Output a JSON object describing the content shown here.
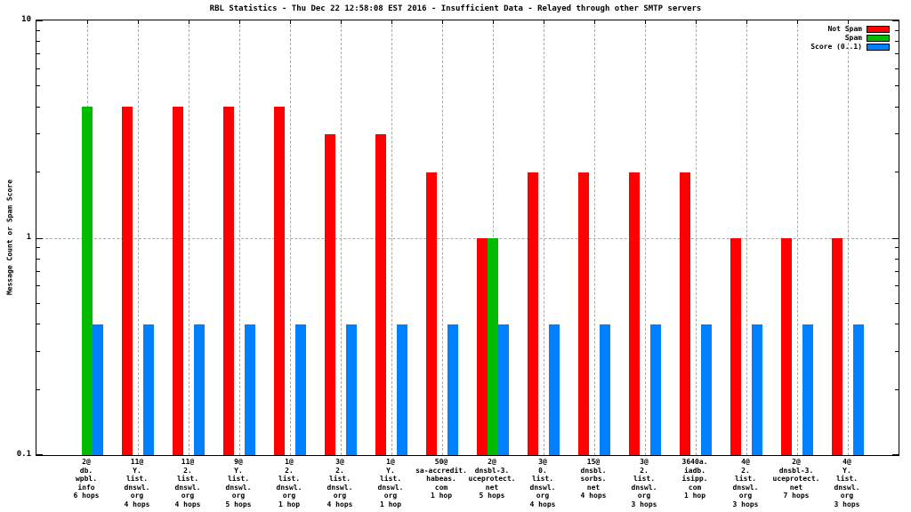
{
  "title": "RBL Statistics - Thu Dec 22 12:58:08 EST 2016 - Insufficient Data - Relayed through other SMTP servers",
  "chart_data": {
    "type": "bar",
    "title": "RBL Statistics - Thu Dec 22 12:58:08 EST 2016 - Insufficient Data - Relayed through other SMTP servers",
    "ylabel": "Message Count or Spam Score",
    "xlabel": "",
    "yscale": "log",
    "ylim": [
      0.1,
      10
    ],
    "ytick_labels": {
      "top": "10",
      "mid": "1",
      "bottom": "0.1"
    },
    "grid": true,
    "legend_position": "top-right-inside",
    "legend": [
      {
        "label": "Not Spam",
        "color": "#ff0000"
      },
      {
        "label": "Spam",
        "color": "#00bb00"
      },
      {
        "label": "Score (0..1)",
        "color": "#0080ff"
      }
    ],
    "categories": [
      [
        "2@",
        "db.",
        "wpbl.",
        "info",
        "6 hops"
      ],
      [
        "11@",
        "Y.",
        "list.",
        "dnswl.",
        "org",
        "4 hops"
      ],
      [
        "11@",
        "2.",
        "list.",
        "dnswl.",
        "org",
        "4 hops"
      ],
      [
        "9@",
        "Y.",
        "list.",
        "dnswl.",
        "org",
        "5 hops"
      ],
      [
        "1@",
        "2.",
        "list.",
        "dnswl.",
        "org",
        "1 hop"
      ],
      [
        "3@",
        "2.",
        "list.",
        "dnswl.",
        "org",
        "4 hops"
      ],
      [
        "1@",
        "Y.",
        "list.",
        "dnswl.",
        "org",
        "1 hop"
      ],
      [
        "50@",
        "sa-accredit.",
        "habeas.",
        "com",
        "1 hop"
      ],
      [
        "2@",
        "dnsbl-3.",
        "uceprotect.",
        "net",
        "5 hops"
      ],
      [
        "3@",
        "0.",
        "list.",
        "dnswl.",
        "org",
        "4 hops"
      ],
      [
        "15@",
        "dnsbl.",
        "sorbs.",
        "net",
        "4 hops"
      ],
      [
        "3@",
        "2.",
        "list.",
        "dnswl.",
        "org",
        "3 hops"
      ],
      [
        "3640a.",
        "iadb.",
        "isipp.",
        "com",
        "1 hop"
      ],
      [
        "4@",
        "2.",
        "list.",
        "dnswl.",
        "org",
        "3 hops"
      ],
      [
        "2@",
        "dnsbl-3.",
        "uceprotect.",
        "net",
        "7 hops"
      ],
      [
        "4@",
        "Y.",
        "list.",
        "dnswl.",
        "org",
        "3 hops"
      ]
    ],
    "series": [
      {
        "name": "Not Spam",
        "color": "#ff0000",
        "values": [
          0,
          4,
          4,
          4,
          4,
          3,
          3,
          2,
          1,
          2,
          2,
          2,
          2,
          1,
          1,
          1
        ]
      },
      {
        "name": "Spam",
        "color": "#00bb00",
        "values": [
          4,
          0,
          0,
          0,
          0,
          0,
          0,
          0,
          1,
          0,
          0,
          0,
          0,
          0,
          0,
          0
        ]
      },
      {
        "name": "Score (0..1)",
        "color": "#0080ff",
        "values": [
          0.4,
          0.4,
          0.4,
          0.4,
          0.4,
          0.4,
          0.4,
          0.4,
          0.4,
          0.4,
          0.4,
          0.4,
          0.4,
          0.4,
          0.4,
          0.4
        ]
      }
    ],
    "minor_ticks": [
      0.2,
      0.3,
      0.4,
      0.5,
      0.6,
      0.7,
      0.8,
      0.9,
      2,
      3,
      4,
      5,
      6,
      7,
      8,
      9
    ]
  }
}
